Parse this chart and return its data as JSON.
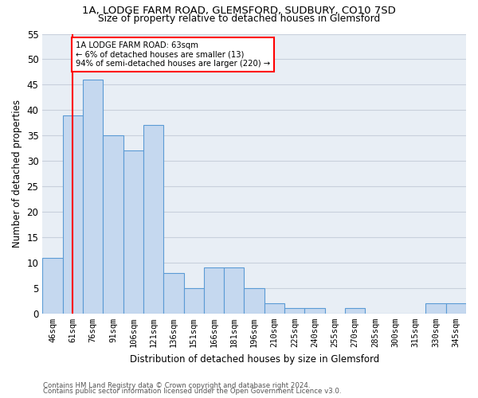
{
  "title1": "1A, LODGE FARM ROAD, GLEMSFORD, SUDBURY, CO10 7SD",
  "title2": "Size of property relative to detached houses in Glemsford",
  "xlabel": "Distribution of detached houses by size in Glemsford",
  "ylabel": "Number of detached properties",
  "categories": [
    "46sqm",
    "61sqm",
    "76sqm",
    "91sqm",
    "106sqm",
    "121sqm",
    "136sqm",
    "151sqm",
    "166sqm",
    "181sqm",
    "196sqm",
    "210sqm",
    "225sqm",
    "240sqm",
    "255sqm",
    "270sqm",
    "285sqm",
    "300sqm",
    "315sqm",
    "330sqm",
    "345sqm"
  ],
  "values": [
    11,
    39,
    46,
    35,
    32,
    37,
    8,
    5,
    9,
    9,
    5,
    2,
    1,
    1,
    0,
    1,
    0,
    0,
    0,
    2,
    2
  ],
  "bar_color": "#c5d8ef",
  "bar_edge_color": "#5b9bd5",
  "vertical_line_x": 1,
  "annotation_text": "1A LODGE FARM ROAD: 63sqm\n← 6% of detached houses are smaller (13)\n94% of semi-detached houses are larger (220) →",
  "annotation_box_color": "white",
  "annotation_box_edge_color": "red",
  "vline_color": "red",
  "ylim": [
    0,
    55
  ],
  "yticks": [
    0,
    5,
    10,
    15,
    20,
    25,
    30,
    35,
    40,
    45,
    50,
    55
  ],
  "grid_color": "#c8d0dc",
  "footer1": "Contains HM Land Registry data © Crown copyright and database right 2024.",
  "footer2": "Contains public sector information licensed under the Open Government Licence v3.0.",
  "bg_color": "#e8eef5"
}
